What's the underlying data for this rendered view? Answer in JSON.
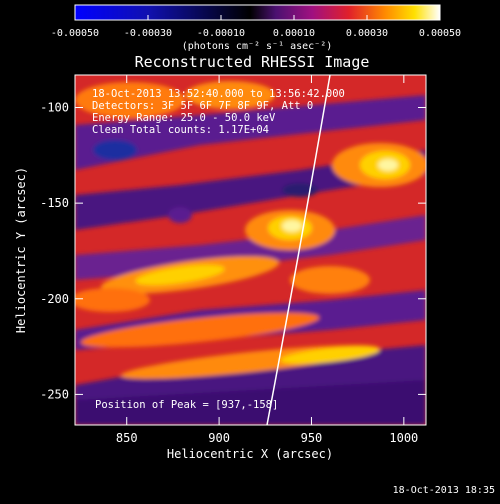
{
  "colorbar": {
    "ticks": [
      "-0.00050",
      "-0.00030",
      "-0.00010",
      "0.00010",
      "0.00030",
      "0.00050"
    ],
    "units": "(photons cm⁻² s⁻¹ asec⁻²)"
  },
  "title": "Reconstructed RHESSI Image",
  "info": {
    "time_range": "18-Oct-2013 13:52:40.000 to 13:56:42.000",
    "detectors": "Detectors: 3F 5F 6F 7F 8F 9F, Att 0",
    "energy": "Energy Range: 25.0 - 50.0 keV",
    "clean": "Clean    Total counts: 1.17E+04",
    "peak": "Position of Peak = [937,-158]"
  },
  "axes": {
    "xlabel": "Heliocentric X (arcsec)",
    "ylabel": "Heliocentric Y (arcsec)",
    "xticks": [
      "850",
      "900",
      "950",
      "1000"
    ],
    "yticks": [
      "-100",
      "-150",
      "-200",
      "-250"
    ]
  },
  "timestamp": "18-Oct-2013 18:35",
  "chart_data": {
    "type": "heatmap",
    "title": "Reconstructed RHESSI Image",
    "xlabel": "Heliocentric X (arcsec)",
    "ylabel": "Heliocentric Y (arcsec)",
    "xlim": [
      822,
      1012
    ],
    "ylim": [
      -266,
      -83
    ],
    "colorbar_range": [
      -0.0005,
      0.0005
    ],
    "peak": [
      937,
      -158
    ],
    "colormap": [
      "#0000ff",
      "#000000",
      "#7a1fa2",
      "#e0202a",
      "#ff8a00",
      "#ffe000",
      "#ffffff"
    ]
  }
}
